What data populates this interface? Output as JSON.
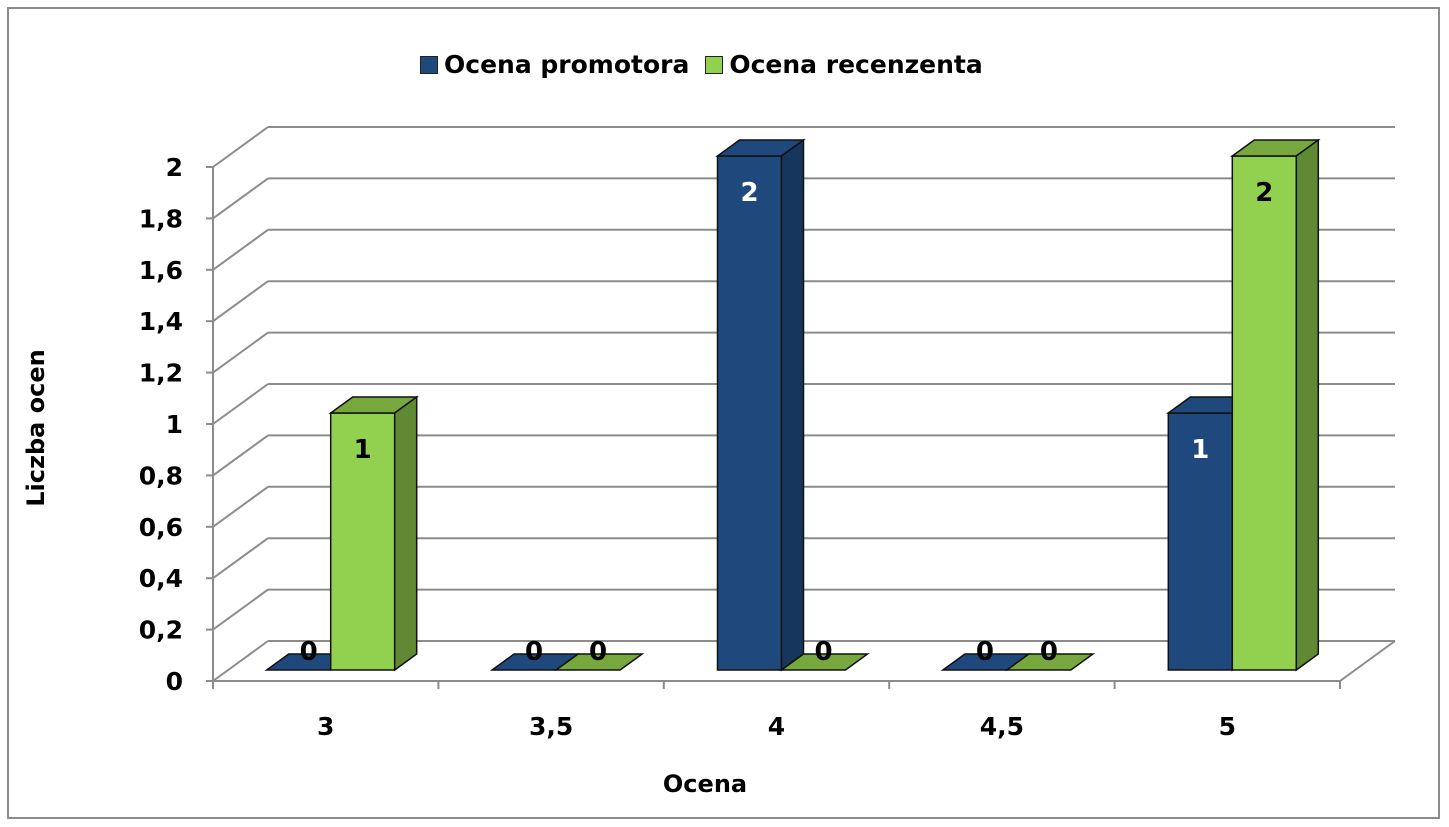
{
  "chart_data": {
    "type": "bar",
    "style": "3d-clustered-column",
    "categories": [
      "3",
      "3,5",
      "4",
      "4,5",
      "5"
    ],
    "series": [
      {
        "name": "Ocena promotora",
        "values": [
          0,
          0,
          2,
          0,
          1
        ],
        "color": "#1f497d",
        "side_color": "#17365d"
      },
      {
        "name": "Ocena recenzenta",
        "values": [
          1,
          0,
          0,
          0,
          2
        ],
        "color": "#92d050",
        "side_color": "#5f8a33"
      }
    ],
    "data_labels": [
      [
        "0",
        "0",
        "2",
        "0",
        "1"
      ],
      [
        "1",
        "0",
        "0",
        "0",
        "2"
      ]
    ],
    "y_ticks": [
      "0",
      "0,2",
      "0,4",
      "0,6",
      "0,8",
      "1",
      "1,2",
      "1,4",
      "1,6",
      "1,8",
      "2"
    ],
    "ylim": [
      0,
      2
    ],
    "xlabel": "Ocena",
    "ylabel": "Liczba ocen",
    "grid": true,
    "legend": "top"
  }
}
